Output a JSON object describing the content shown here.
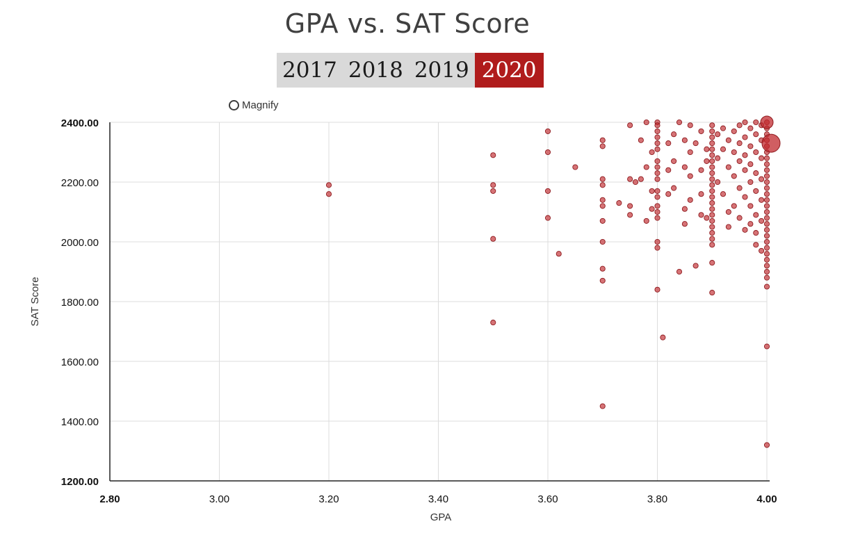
{
  "chart_data": {
    "type": "scatter",
    "title": "GPA vs. SAT Score",
    "xlabel": "GPA",
    "ylabel": "SAT Score",
    "xlim": [
      2.8,
      4.0
    ],
    "ylim": [
      1200,
      2400
    ],
    "x_ticks": [
      "2.80",
      "3.00",
      "3.20",
      "3.40",
      "3.60",
      "3.80",
      "4.00"
    ],
    "y_ticks": [
      "1200.00",
      "1400.00",
      "1600.00",
      "1800.00",
      "2000.00",
      "2200.00",
      "2400.00"
    ],
    "grid": true,
    "point_color": "#c0282d",
    "series": [
      {
        "points": [
          [
            3.2,
            2190
          ],
          [
            3.2,
            2160
          ],
          [
            3.5,
            2290
          ],
          [
            3.5,
            2190
          ],
          [
            3.5,
            2170
          ],
          [
            3.5,
            2010
          ],
          [
            3.5,
            1730
          ],
          [
            3.6,
            2370
          ],
          [
            3.6,
            2300
          ],
          [
            3.6,
            2170
          ],
          [
            3.6,
            2080
          ],
          [
            3.62,
            1960
          ],
          [
            3.65,
            2250
          ],
          [
            3.7,
            2340
          ],
          [
            3.7,
            2320
          ],
          [
            3.7,
            2210
          ],
          [
            3.7,
            2190
          ],
          [
            3.7,
            2140
          ],
          [
            3.7,
            2120
          ],
          [
            3.7,
            2070
          ],
          [
            3.7,
            2000
          ],
          [
            3.7,
            1910
          ],
          [
            3.7,
            1870
          ],
          [
            3.7,
            1450
          ],
          [
            3.73,
            2130
          ],
          [
            3.75,
            2390
          ],
          [
            3.75,
            2210
          ],
          [
            3.75,
            2120
          ],
          [
            3.75,
            2090
          ],
          [
            3.76,
            2200
          ],
          [
            3.77,
            2340
          ],
          [
            3.77,
            2210
          ],
          [
            3.78,
            2400
          ],
          [
            3.78,
            2250
          ],
          [
            3.78,
            2070
          ],
          [
            3.79,
            2300
          ],
          [
            3.79,
            2170
          ],
          [
            3.79,
            2110
          ],
          [
            3.8,
            2400
          ],
          [
            3.8,
            2390
          ],
          [
            3.8,
            2370
          ],
          [
            3.8,
            2350
          ],
          [
            3.8,
            2330
          ],
          [
            3.8,
            2310
          ],
          [
            3.8,
            2270
          ],
          [
            3.8,
            2250
          ],
          [
            3.8,
            2230
          ],
          [
            3.8,
            2210
          ],
          [
            3.8,
            2170
          ],
          [
            3.8,
            2150
          ],
          [
            3.8,
            2120
          ],
          [
            3.8,
            2100
          ],
          [
            3.8,
            2080
          ],
          [
            3.8,
            2000
          ],
          [
            3.8,
            1980
          ],
          [
            3.8,
            1840
          ],
          [
            3.81,
            1680
          ],
          [
            3.82,
            2330
          ],
          [
            3.82,
            2240
          ],
          [
            3.82,
            2160
          ],
          [
            3.83,
            2360
          ],
          [
            3.83,
            2270
          ],
          [
            3.83,
            2180
          ],
          [
            3.84,
            1900
          ],
          [
            3.84,
            2400
          ],
          [
            3.85,
            2340
          ],
          [
            3.85,
            2250
          ],
          [
            3.85,
            2110
          ],
          [
            3.85,
            2060
          ],
          [
            3.86,
            2390
          ],
          [
            3.86,
            2300
          ],
          [
            3.86,
            2220
          ],
          [
            3.86,
            2140
          ],
          [
            3.87,
            2330
          ],
          [
            3.87,
            1920
          ],
          [
            3.88,
            2370
          ],
          [
            3.88,
            2240
          ],
          [
            3.88,
            2160
          ],
          [
            3.88,
            2090
          ],
          [
            3.89,
            2310
          ],
          [
            3.89,
            2270
          ],
          [
            3.89,
            2080
          ],
          [
            3.9,
            2390
          ],
          [
            3.9,
            2370
          ],
          [
            3.9,
            2350
          ],
          [
            3.9,
            2330
          ],
          [
            3.9,
            2310
          ],
          [
            3.9,
            2290
          ],
          [
            3.9,
            2270
          ],
          [
            3.9,
            2250
          ],
          [
            3.9,
            2230
          ],
          [
            3.9,
            2210
          ],
          [
            3.9,
            2190
          ],
          [
            3.9,
            2170
          ],
          [
            3.9,
            2150
          ],
          [
            3.9,
            2130
          ],
          [
            3.9,
            2110
          ],
          [
            3.9,
            2090
          ],
          [
            3.9,
            2070
          ],
          [
            3.9,
            2050
          ],
          [
            3.9,
            2030
          ],
          [
            3.9,
            2010
          ],
          [
            3.9,
            1990
          ],
          [
            3.9,
            1930
          ],
          [
            3.9,
            1830
          ],
          [
            3.91,
            2360
          ],
          [
            3.91,
            2280
          ],
          [
            3.91,
            2200
          ],
          [
            3.92,
            2380
          ],
          [
            3.92,
            2310
          ],
          [
            3.92,
            2160
          ],
          [
            3.93,
            2340
          ],
          [
            3.93,
            2250
          ],
          [
            3.93,
            2100
          ],
          [
            3.93,
            2050
          ],
          [
            3.94,
            2370
          ],
          [
            3.94,
            2300
          ],
          [
            3.94,
            2220
          ],
          [
            3.94,
            2120
          ],
          [
            3.95,
            2390
          ],
          [
            3.95,
            2330
          ],
          [
            3.95,
            2270
          ],
          [
            3.95,
            2180
          ],
          [
            3.95,
            2080
          ],
          [
            3.96,
            2400
          ],
          [
            3.96,
            2350
          ],
          [
            3.96,
            2290
          ],
          [
            3.96,
            2240
          ],
          [
            3.96,
            2150
          ],
          [
            3.96,
            2040
          ],
          [
            3.97,
            2380
          ],
          [
            3.97,
            2320
          ],
          [
            3.97,
            2260
          ],
          [
            3.97,
            2200
          ],
          [
            3.97,
            2120
          ],
          [
            3.97,
            2060
          ],
          [
            3.98,
            2400
          ],
          [
            3.98,
            2360
          ],
          [
            3.98,
            2300
          ],
          [
            3.98,
            2230
          ],
          [
            3.98,
            2170
          ],
          [
            3.98,
            2090
          ],
          [
            3.98,
            2030
          ],
          [
            3.98,
            1990
          ],
          [
            3.99,
            2390
          ],
          [
            3.99,
            2340
          ],
          [
            3.99,
            2280
          ],
          [
            3.99,
            2210
          ],
          [
            3.99,
            2140
          ],
          [
            3.99,
            2070
          ],
          [
            3.99,
            1970
          ],
          [
            4.0,
            2400
          ],
          [
            4.0,
            2380
          ],
          [
            4.0,
            2360
          ],
          [
            4.0,
            2340
          ],
          [
            4.0,
            2320
          ],
          [
            4.0,
            2300
          ],
          [
            4.0,
            2280
          ],
          [
            4.0,
            2260
          ],
          [
            4.0,
            2240
          ],
          [
            4.0,
            2220
          ],
          [
            4.0,
            2200
          ],
          [
            4.0,
            2180
          ],
          [
            4.0,
            2160
          ],
          [
            4.0,
            2140
          ],
          [
            4.0,
            2120
          ],
          [
            4.0,
            2100
          ],
          [
            4.0,
            2080
          ],
          [
            4.0,
            2060
          ],
          [
            4.0,
            2040
          ],
          [
            4.0,
            2020
          ],
          [
            4.0,
            2000
          ],
          [
            4.0,
            1980
          ],
          [
            4.0,
            1960
          ],
          [
            4.0,
            1940
          ],
          [
            4.0,
            1920
          ],
          [
            4.0,
            1900
          ],
          [
            4.0,
            1880
          ],
          [
            4.0,
            1850
          ],
          [
            4.0,
            1650
          ],
          [
            4.0,
            1320
          ]
        ],
        "large_points": [
          [
            4.0,
            2400
          ],
          [
            4.0,
            2330
          ]
        ]
      }
    ]
  },
  "year_tabs": [
    {
      "label": "2017",
      "active": false
    },
    {
      "label": "2018",
      "active": false
    },
    {
      "label": "2019",
      "active": false
    },
    {
      "label": "2020",
      "active": true
    }
  ],
  "magnify_label": "Magnify",
  "colors": {
    "accent": "#b01c1c",
    "tab_bg": "#d9d9d9",
    "grid": "#dcdcdc",
    "point": "#c0282d"
  }
}
